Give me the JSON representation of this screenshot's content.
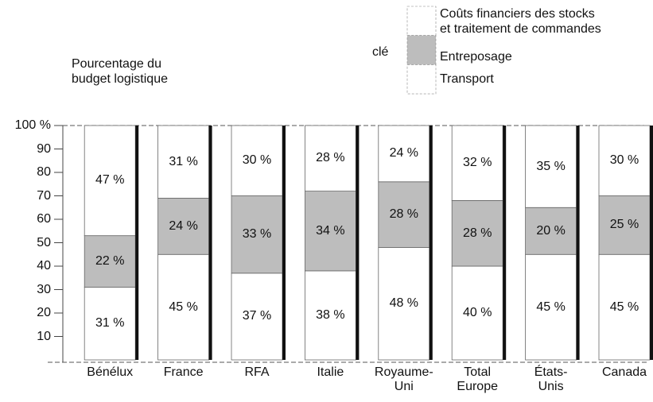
{
  "chart_data": {
    "type": "stacked_bar",
    "y_label": "Pourcentage du\nbudget logistique",
    "legend_title": "clé",
    "categories": [
      "Bénélux",
      "France",
      "RFA",
      "Italie",
      "Royaume-\nUni",
      "Total\nEurope",
      "États-\nUnis",
      "Canada"
    ],
    "series": [
      {
        "name": "Transport",
        "color": "#ffffff",
        "values": [
          31,
          45,
          37,
          38,
          48,
          40,
          45,
          45
        ],
        "value_labels": [
          "31 %",
          "45 %",
          "37 %",
          "38 %",
          "48 %",
          "40 %",
          "45 %",
          "45 %"
        ]
      },
      {
        "name": "Entreposage",
        "color": "#bdbdbd",
        "values": [
          22,
          24,
          33,
          34,
          28,
          28,
          20,
          25
        ],
        "value_labels": [
          "22 %",
          "24 %",
          "33 %",
          "34 %",
          "28 %",
          "28 %",
          "20 %",
          "25 %"
        ]
      },
      {
        "name": "Coûts financiers des stocks\net traitement de commandes",
        "color": "#ffffff",
        "values": [
          47,
          31,
          30,
          28,
          24,
          32,
          35,
          30
        ],
        "value_labels": [
          "47 %",
          "31 %",
          "30 %",
          "28 %",
          "24 %",
          "32 %",
          "35 %",
          "30 %"
        ]
      }
    ],
    "ylim": [
      0,
      100
    ],
    "yticks": [
      10,
      20,
      30,
      40,
      50,
      60,
      70,
      80,
      90,
      {
        "value": 100,
        "label": "100 %"
      }
    ]
  }
}
